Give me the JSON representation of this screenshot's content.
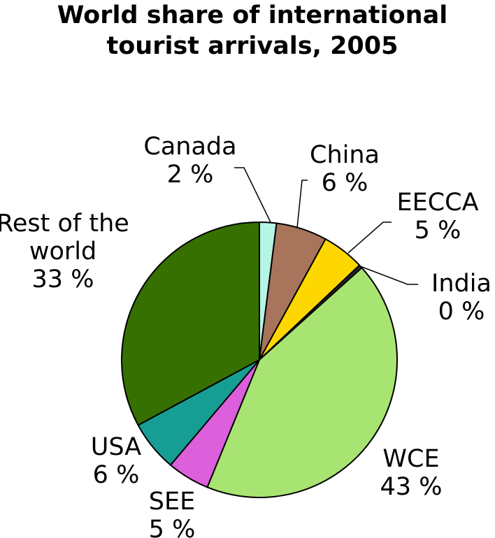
{
  "chart_data": {
    "type": "pie",
    "title": "World share of international tourist arrivals, 2005",
    "categories": [
      "Canada",
      "China",
      "EECCA",
      "India",
      "WCE",
      "SEE",
      "USA",
      "Rest of the world"
    ],
    "values": [
      2,
      6,
      5,
      0.4,
      43,
      5,
      6,
      33
    ],
    "value_labels": [
      "2 %",
      "6 %",
      "5 %",
      "0 %",
      "43 %",
      "5 %",
      "6 %",
      "33 %"
    ],
    "colors": [
      "#b5f5e6",
      "#a8745b",
      "#ffd700",
      "#2b2b2b",
      "#a8e472",
      "#dc5fdc",
      "#179e94",
      "#367000"
    ]
  }
}
